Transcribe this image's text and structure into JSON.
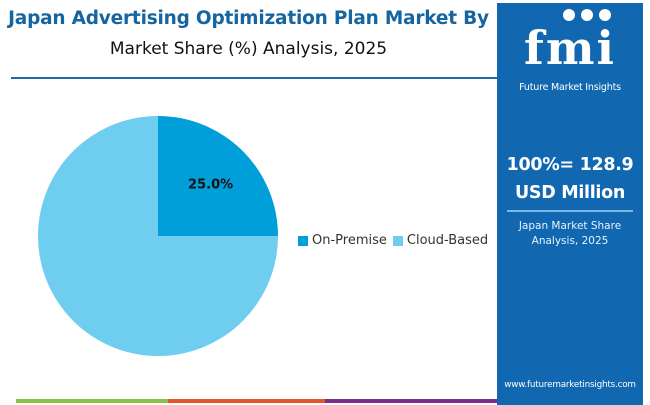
{
  "header": {
    "title": "Japan Advertising Optimization Plan Market By",
    "subtitle": "Market Share (%) Analysis, 2025"
  },
  "chart_data": {
    "type": "pie",
    "title": "Japan Advertising Optimization Plan Market By Market Share (%) Analysis, 2025",
    "categories": [
      "On-Premise",
      "Cloud-Based"
    ],
    "values": [
      25.0,
      75.0
    ],
    "data_labels": [
      "25.0%",
      ""
    ],
    "colors": [
      "#009fd9",
      "#6fcdf0"
    ],
    "start_angle_deg": 0,
    "direction": "clockwise",
    "legend": {
      "position": "right",
      "entries": [
        "On-Premise",
        "Cloud-Based"
      ]
    }
  },
  "side_panel": {
    "brand_mark": "fmi",
    "brand_name": "Future Market Insights",
    "total_line1": "100%= 128.9",
    "total_line2": "USD Million",
    "caption_line1": "Japan Market Share",
    "caption_line2": "Analysis, 2025",
    "website": "www.futuremarketinsights.com",
    "background_color": "#1168b0"
  },
  "footer_strip_colors": [
    "#8bc34a",
    "#e2572b",
    "#7b2d8b"
  ]
}
